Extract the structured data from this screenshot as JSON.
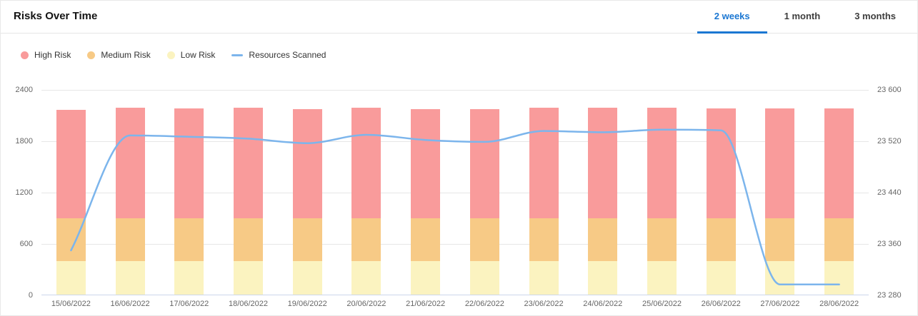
{
  "header": {
    "title": "Risks Over Time",
    "tabs": [
      {
        "id": "2-weeks",
        "label": "2 weeks",
        "active": true
      },
      {
        "id": "1-month",
        "label": "1 month",
        "active": false
      },
      {
        "id": "3-months",
        "label": "3 months",
        "active": false
      }
    ]
  },
  "legend": {
    "items": [
      {
        "id": "high-risk",
        "label": "High Risk",
        "marker": "circle",
        "color": "#F99B9B"
      },
      {
        "id": "medium-risk",
        "label": "Medium Risk",
        "marker": "circle",
        "color": "#F7CA86"
      },
      {
        "id": "low-risk",
        "label": "Low Risk",
        "marker": "circle",
        "color": "#FBF3C0"
      },
      {
        "id": "resources-scanned",
        "label": "Resources Scanned",
        "marker": "line",
        "color": "#7CB5EC"
      }
    ]
  },
  "colors": {
    "accent_blue": "#1B77D2",
    "high_risk": "#F99B9B",
    "medium_risk": "#F7CA86",
    "low_risk": "#FBF3C0",
    "line_blue": "#7CB5EC",
    "grid": "#E6E6E6",
    "x_axis_line": "#CCD6EB",
    "axis_text": "#666666"
  },
  "chart_data": {
    "type": "bar",
    "subtype": "stacked-bars-with-line",
    "title": "Risks Over Time",
    "categories": [
      "15/06/2022",
      "16/06/2022",
      "17/06/2022",
      "18/06/2022",
      "19/06/2022",
      "20/06/2022",
      "21/06/2022",
      "22/06/2022",
      "23/06/2022",
      "24/06/2022",
      "25/06/2022",
      "26/06/2022",
      "27/06/2022",
      "28/06/2022"
    ],
    "stacked": true,
    "grid": true,
    "legend_position": "top-left",
    "series": [
      {
        "name": "Low Risk",
        "type": "bar",
        "axis": "left",
        "color": "#FBF3C0",
        "values": [
          400,
          400,
          400,
          400,
          400,
          400,
          400,
          400,
          400,
          400,
          400,
          400,
          400,
          400
        ]
      },
      {
        "name": "Medium Risk",
        "type": "bar",
        "axis": "left",
        "color": "#F7CA86",
        "values": [
          500,
          500,
          500,
          500,
          500,
          500,
          500,
          500,
          500,
          500,
          500,
          500,
          500,
          500
        ]
      },
      {
        "name": "High Risk",
        "type": "bar",
        "axis": "left",
        "color": "#F99B9B",
        "values": [
          1265,
          1290,
          1280,
          1290,
          1275,
          1290,
          1275,
          1275,
          1290,
          1290,
          1290,
          1280,
          1280,
          1280
        ]
      },
      {
        "name": "Resources Scanned",
        "type": "line",
        "axis": "right",
        "color": "#7CB5EC",
        "values": [
          23350,
          23529,
          23527,
          23524,
          23517,
          23530,
          23522,
          23519,
          23536,
          23534,
          23538,
          23537,
          23297,
          23297
        ]
      }
    ],
    "left_axis": {
      "min": 0,
      "max": 2400,
      "ticks": [
        {
          "value": 0,
          "label": "0"
        },
        {
          "value": 600,
          "label": "600"
        },
        {
          "value": 1200,
          "label": "1200"
        },
        {
          "value": 1800,
          "label": "1800"
        },
        {
          "value": 2400,
          "label": "2400"
        }
      ]
    },
    "right_axis": {
      "min": 23280,
      "max": 23600,
      "ticks": [
        {
          "value": 23280,
          "label": "23 280"
        },
        {
          "value": 23360,
          "label": "23 360"
        },
        {
          "value": 23440,
          "label": "23 440"
        },
        {
          "value": 23520,
          "label": "23 520"
        },
        {
          "value": 23600,
          "label": "23 600"
        }
      ]
    }
  }
}
